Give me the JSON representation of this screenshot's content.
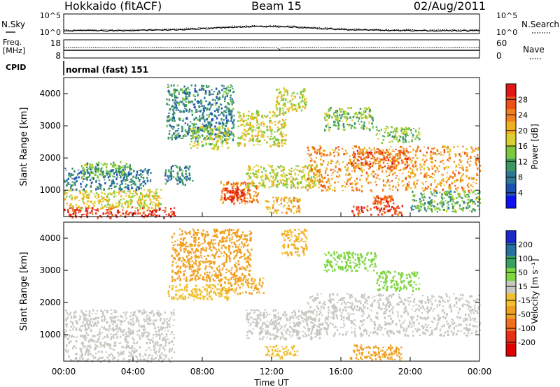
{
  "header": {
    "station": "Hokkaido (fitACF)",
    "beam": "Beam 15",
    "date": "02/Aug/2011"
  },
  "noise_panel": {
    "left_label_top": "N.Sky",
    "right_label_top": "N.Search",
    "left_ticks": [
      "10^5",
      "10^0"
    ],
    "right_ticks": [
      "10^5",
      "10^0"
    ],
    "freq_label_1": "Freq.",
    "freq_label_2": "[MHz]",
    "freq_ticks": [
      "18",
      "8"
    ],
    "nave_label": "Nave",
    "nave_ticks": [
      "60",
      "0"
    ],
    "cpid_label": "CPID",
    "cpid_text": "normal (fast) 151"
  },
  "x_axis": {
    "label": "Time UT",
    "ticks": [
      "00:00",
      "04:00",
      "08:00",
      "12:00",
      "16:00",
      "20:00",
      "00:00"
    ]
  },
  "chart_data": [
    {
      "type": "heatmap",
      "parameter": "Power",
      "ylabel": "Slant Range [km]",
      "xlabel": "Time UT",
      "x_range_hours": [
        0,
        24
      ],
      "ylim": [
        180,
        4500
      ],
      "y_ticks": [
        1000,
        2000,
        3000,
        4000
      ],
      "colorbar": {
        "label": "Power [dB]",
        "ticks": [
          "4",
          "8",
          "12",
          "16",
          "20",
          "24",
          "28"
        ],
        "range": [
          0,
          30
        ],
        "colors": [
          "#1010f0",
          "#1e50b4",
          "#2e7896",
          "#3c9860",
          "#7ec840",
          "#d8d030",
          "#f0b020",
          "#f08020",
          "#ee5018",
          "#e01818"
        ]
      },
      "echo_regions": [
        {
          "t": [
            0.0,
            6.4
          ],
          "r": [
            180,
            500
          ],
          "value": 27
        },
        {
          "t": [
            0.0,
            5.6
          ],
          "r": [
            450,
            1050
          ],
          "value": 17
        },
        {
          "t": [
            0.0,
            5.0
          ],
          "r": [
            1050,
            1700
          ],
          "value": 8
        },
        {
          "t": [
            1.0,
            3.8
          ],
          "r": [
            1400,
            1900
          ],
          "value": 12
        },
        {
          "t": [
            5.8,
            7.4
          ],
          "r": [
            1200,
            1800
          ],
          "value": 9
        },
        {
          "t": [
            5.9,
            9.8
          ],
          "r": [
            2600,
            4300
          ],
          "value": 9
        },
        {
          "t": [
            7.2,
            9.5
          ],
          "r": [
            2300,
            3000
          ],
          "value": 15
        },
        {
          "t": [
            9.0,
            11.2
          ],
          "r": [
            600,
            1300
          ],
          "value": 22
        },
        {
          "t": [
            9.2,
            10.4
          ],
          "r": [
            700,
            1100
          ],
          "value": 28
        },
        {
          "t": [
            10.5,
            14.8
          ],
          "r": [
            1100,
            1800
          ],
          "value": 16
        },
        {
          "t": [
            11.6,
            13.6
          ],
          "r": [
            300,
            800
          ],
          "value": 20
        },
        {
          "t": [
            10.0,
            12.8
          ],
          "r": [
            2400,
            3500
          ],
          "value": 16
        },
        {
          "t": [
            12.2,
            14.0
          ],
          "r": [
            3500,
            4200
          ],
          "value": 16
        },
        {
          "t": [
            14.0,
            24.0
          ],
          "r": [
            1000,
            2400
          ],
          "value": 21
        },
        {
          "t": [
            16.5,
            20.0
          ],
          "r": [
            1700,
            2300
          ],
          "value": 24
        },
        {
          "t": [
            16.5,
            19.5
          ],
          "r": [
            250,
            550
          ],
          "value": 26
        },
        {
          "t": [
            17.8,
            19.0
          ],
          "r": [
            600,
            850
          ],
          "value": 24
        },
        {
          "t": [
            15.0,
            17.8
          ],
          "r": [
            2900,
            3600
          ],
          "value": 13
        },
        {
          "t": [
            18.0,
            20.5
          ],
          "r": [
            2500,
            3000
          ],
          "value": 14
        },
        {
          "t": [
            20.0,
            24.0
          ],
          "r": [
            350,
            1000
          ],
          "value": 12
        }
      ]
    },
    {
      "type": "heatmap",
      "parameter": "Velocity",
      "ylabel": "Slant Range [km]",
      "xlabel": "Time UT",
      "x_range_hours": [
        0,
        24
      ],
      "ylim": [
        180,
        4500
      ],
      "y_ticks": [
        1000,
        2000,
        3000,
        4000
      ],
      "colorbar": {
        "label": "Velocity [m s⁻¹]",
        "ticks": [
          "200",
          "100",
          "50",
          "15",
          "-15",
          "-50",
          "-100",
          "-200"
        ],
        "colors": [
          "#1c28c8",
          "#2870a0",
          "#38a060",
          "#7ed640",
          "#c8c8c0",
          "#f0c030",
          "#f0a020",
          "#f07020",
          "#e83018",
          "#e00000"
        ]
      },
      "echo_regions": [
        {
          "t": [
            0.0,
            6.4
          ],
          "r": [
            180,
            1800
          ],
          "value": -5
        },
        {
          "t": [
            6.2,
            10.8
          ],
          "r": [
            2700,
            4300
          ],
          "value": -60
        },
        {
          "t": [
            6.0,
            9.5
          ],
          "r": [
            2100,
            2600
          ],
          "value": -40
        },
        {
          "t": [
            9.0,
            11.5
          ],
          "r": [
            2300,
            2800
          ],
          "value": -50
        },
        {
          "t": [
            10.5,
            14.8
          ],
          "r": [
            900,
            1800
          ],
          "value": 0
        },
        {
          "t": [
            11.6,
            13.5
          ],
          "r": [
            300,
            700
          ],
          "value": -40
        },
        {
          "t": [
            12.5,
            14.0
          ],
          "r": [
            3500,
            4300
          ],
          "value": -50
        },
        {
          "t": [
            14.0,
            24.0
          ],
          "r": [
            1000,
            2300
          ],
          "value": -5
        },
        {
          "t": [
            16.5,
            19.5
          ],
          "r": [
            250,
            700
          ],
          "value": -90
        },
        {
          "t": [
            15.0,
            18.0
          ],
          "r": [
            3000,
            3600
          ],
          "value": 25
        },
        {
          "t": [
            18.0,
            20.5
          ],
          "r": [
            2400,
            3000
          ],
          "value": 20
        }
      ]
    }
  ]
}
